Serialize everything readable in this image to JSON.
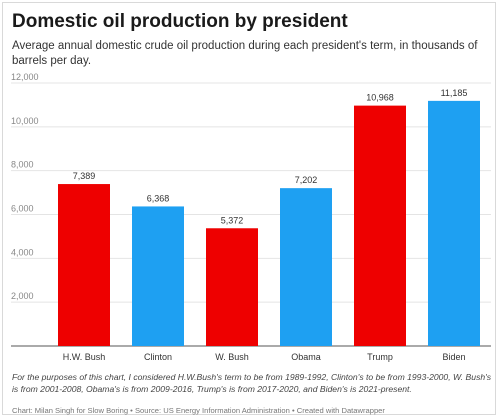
{
  "title": "Domestic oil production by president",
  "subtitle": "Average annual domestic crude oil production during each president's term, in thousands of barrels per day.",
  "note": "For the purposes of this chart, I considered H.W.Bush's term to be from 1989-1992, Clinton's to be from 1993-2000, W. Bush's is from 2001-2008, Obama's is from 2009-2016, Trump's is from 2017-2020, and Biden's is 2021-present.",
  "credit": "Chart: Milan Singh for Slow Boring • Source: US Energy Information Administration • Created with Datawrapper",
  "chart_data": {
    "type": "bar",
    "title": "Domestic oil production by president",
    "categories": [
      "H.W. Bush",
      "Clinton",
      "W. Bush",
      "Obama",
      "Trump",
      "Biden"
    ],
    "values": [
      7389,
      6368,
      5372,
      7202,
      10968,
      11185
    ],
    "value_labels": [
      "7,389",
      "6,368",
      "5,372",
      "7,202",
      "10,968",
      "11,185"
    ],
    "colors": [
      "#ee0000",
      "#1ea0f2",
      "#ee0000",
      "#1ea0f2",
      "#ee0000",
      "#1ea0f2"
    ],
    "yticks": [
      0,
      2000,
      4000,
      6000,
      8000,
      10000,
      12000
    ],
    "ytick_labels": [
      "",
      "2,000",
      "4,000",
      "6,000",
      "8,000",
      "10,000",
      "12,000"
    ],
    "ylim": [
      0,
      12000
    ],
    "xlabel": "",
    "ylabel": "",
    "grid": true,
    "legend": "none"
  }
}
